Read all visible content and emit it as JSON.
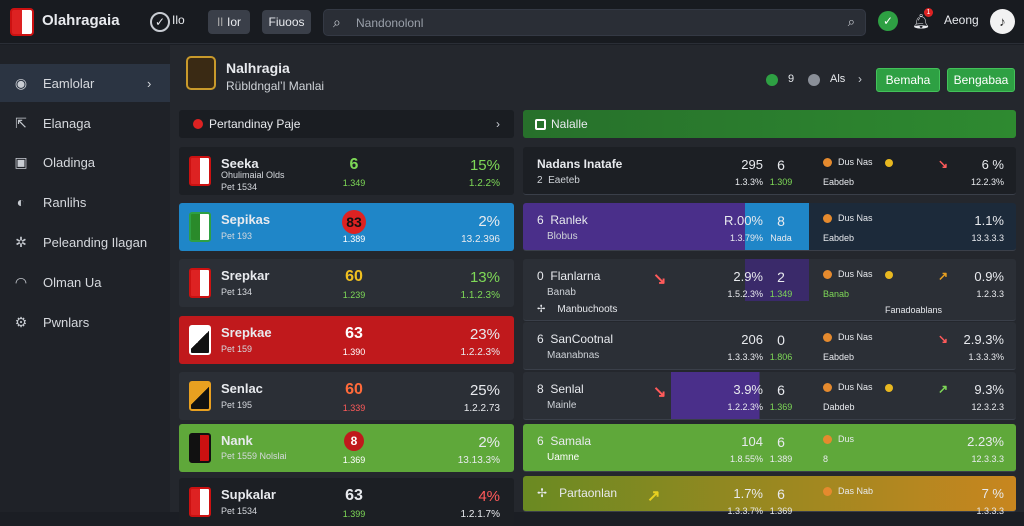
{
  "app": {
    "title": "Olahragaia"
  },
  "topbar": {
    "chip1": "Ilo",
    "chip2": "Ior",
    "chip3": "Fiuoos",
    "search_placeholder": "Nandonolonl",
    "user": "Aeong",
    "notify_count": "1"
  },
  "sidebar": {
    "items": [
      {
        "label": "Eamlolar"
      },
      {
        "label": "Elanaga"
      },
      {
        "label": "Oladinga"
      },
      {
        "label": "Ranlihs"
      },
      {
        "label": "Peleanding Ilagan"
      },
      {
        "label": "Olman Ua"
      },
      {
        "label": "Pwnlars"
      }
    ]
  },
  "header": {
    "title": "Nalhragia",
    "subtitle": "Rübldngal’l Manlai",
    "stat1": "9",
    "stat2": "Als",
    "btn1": "Bemaha",
    "btn2": "Bengabaa"
  },
  "left_panel": {
    "title": "Pertandinay Paje",
    "rows": [
      {
        "name": "Seeka",
        "sub1": "Ohulimaial Olds",
        "sub2": "Pet 1534",
        "score": "6",
        "score_sub": "1.349",
        "pct": "15%",
        "odds": "1.2.2%"
      },
      {
        "name": "Sepikas",
        "sub1": "",
        "sub2": "Pet 193",
        "score": "83",
        "score_sub": "1.389",
        "pct": "2%",
        "odds": "13.2.396"
      },
      {
        "name": "Srepkar",
        "sub1": "",
        "sub2": "Pet 134",
        "score": "60",
        "score_sub": "1.239",
        "pct": "13%",
        "odds": "1.1.2.3%"
      },
      {
        "name": "Srepkae",
        "sub1": "",
        "sub2": "Pet 159",
        "score": "63",
        "score_sub": "1.390",
        "pct": "23%",
        "odds": "1.2.2.3%"
      },
      {
        "name": "Senlac",
        "sub1": "",
        "sub2": "Pet 195",
        "score": "60",
        "score_sub": "1.339",
        "pct": "25%",
        "odds": "1.2.2.73"
      },
      {
        "name": "Nank",
        "sub1": "Pet 1559 Nolslai",
        "sub2": "",
        "score": "8",
        "score_sub": "1.369",
        "pct": "2%",
        "odds": "13.13.3%"
      },
      {
        "name": "Supkalar",
        "sub1": "",
        "sub2": "Pet 1534",
        "score": "63",
        "score_sub": "1.399",
        "pct": "4%",
        "odds": "1.2.1.7%"
      }
    ]
  },
  "right_panel": {
    "title": "Nalalle",
    "rows": [
      {
        "name": "Nadans Inatafe",
        "idx": "2",
        "sub": "Eaeteb",
        "p1": "295",
        "o1": "1.3.3%",
        "m": "6",
        "msub": "1.309",
        "st1": "Dus  Nas",
        "st2": "Eabdeb",
        "p2": "6 %",
        "o2": "12.2.3%"
      },
      {
        "name": "Ranlek",
        "idx": "6",
        "sub": "Blobus",
        "p1": "R.00%",
        "o1": "1.3.79%",
        "m": "8",
        "msub": "Nada",
        "st1": "Dus  Nas",
        "st2": "Eabdeb",
        "p2": "1.1%",
        "o2": "13.3.3.3"
      },
      {
        "name": "Flanlarna",
        "idx": "0",
        "sub": "Banab",
        "p1": "2.9%",
        "o1": "1.5.2.3%",
        "m": "2",
        "msub": "1.349",
        "st1": "Dus  Nas",
        "st2": "Banab",
        "p2": "0.9%",
        "o2": "1.2.3.3"
      },
      {
        "name": "Manbuchoots",
        "idx": "",
        "sub": "",
        "p1": "",
        "o1": "",
        "m": "",
        "msub": "",
        "st1": "Fanadoablans",
        "st2": "",
        "p2": "",
        "o2": ""
      },
      {
        "name": "SanCootnal",
        "idx": "6",
        "sub": "Maanabnas",
        "p1": "206",
        "o1": "1.3.3.3%",
        "m": "0",
        "msub": "1.806",
        "st1": "Dus  Nas",
        "st2": "Eabdeb",
        "p2": "2.9.3%",
        "o2": "1.3.3.3%"
      },
      {
        "name": "Senlal",
        "idx": "8",
        "sub": "Mainle",
        "p1": "3.9%",
        "o1": "1.2.2.3%",
        "m": "6",
        "msub": "1.369",
        "st1": "Dus  Nas",
        "st2": "Dabdeb",
        "p2": "9.3%",
        "o2": "12.3.2.3"
      },
      {
        "name": "Samala",
        "idx": "6",
        "sub": "Uamne",
        "p1": "104",
        "o1": "1.8.55%",
        "m": "6",
        "msub": "1.389",
        "st1": "Dus",
        "st2": "8",
        "p2": "2.23%",
        "o2": "12.3.3.3"
      },
      {
        "name": "Partaonlan",
        "idx": "",
        "sub": "",
        "p1": "1.7%",
        "o1": "1.3.3.7%",
        "m": "6",
        "msub": "1.369",
        "st1": "Das  Nab",
        "st2": "",
        "p2": "7 %",
        "o2": "1.3.3.3"
      }
    ]
  },
  "colors": {
    "accent_green": "#2ea043",
    "accent_blue": "#1f86c8",
    "accent_red": "#c0191c",
    "accent_lime": "#5fa83a",
    "accent_purple": "#4a2f8a"
  }
}
